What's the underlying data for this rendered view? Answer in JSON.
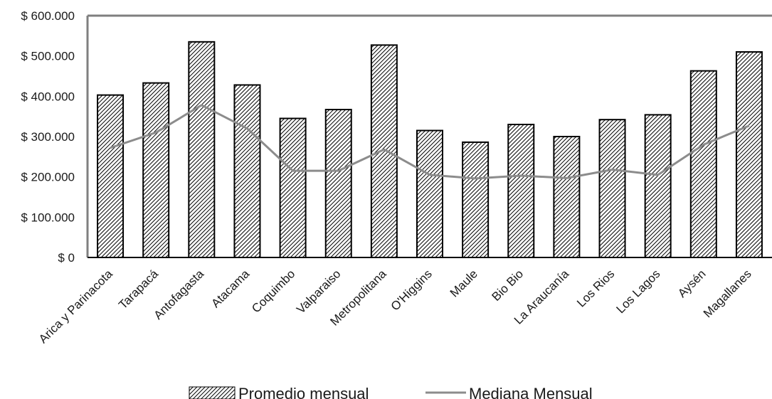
{
  "chart_data": {
    "type": "bar",
    "categories": [
      "Arica y Parinacota",
      "Tarapacá",
      "Antofagasta",
      "Atacama",
      "Coquimbo",
      "Valparaiso",
      "Metropolitana",
      "O'Higgins",
      "Maule",
      "Bio Bio",
      "La Araucanía",
      "Los Rios",
      "Los Lagos",
      "Aysén",
      "Magallanes"
    ],
    "series": [
      {
        "name": "Promedio mensual",
        "type": "bar",
        "pattern": "diagonal-hatch",
        "values": [
          403000,
          433000,
          535000,
          428000,
          345000,
          367000,
          527000,
          315000,
          286000,
          330000,
          300000,
          342000,
          354000,
          463000,
          510000
        ]
      },
      {
        "name": "Mediana Mensual",
        "type": "line",
        "color": "#8c8c8c",
        "values": [
          272000,
          310000,
          378000,
          320000,
          215000,
          215000,
          268000,
          205000,
          196000,
          203000,
          197000,
          218000,
          205000,
          280000,
          327000
        ]
      }
    ],
    "yticks": [
      "$ 0",
      "$ 100.000",
      "$ 200.000",
      "$ 300.000",
      "$ 400.000",
      "$ 500.000",
      "$ 600.000"
    ],
    "ylim": [
      0,
      600000
    ],
    "grid": false,
    "legend_position": "bottom",
    "colors": {
      "axis": "#7f7f7f",
      "bar_stroke": "#000000",
      "line": "#8c8c8c"
    }
  }
}
